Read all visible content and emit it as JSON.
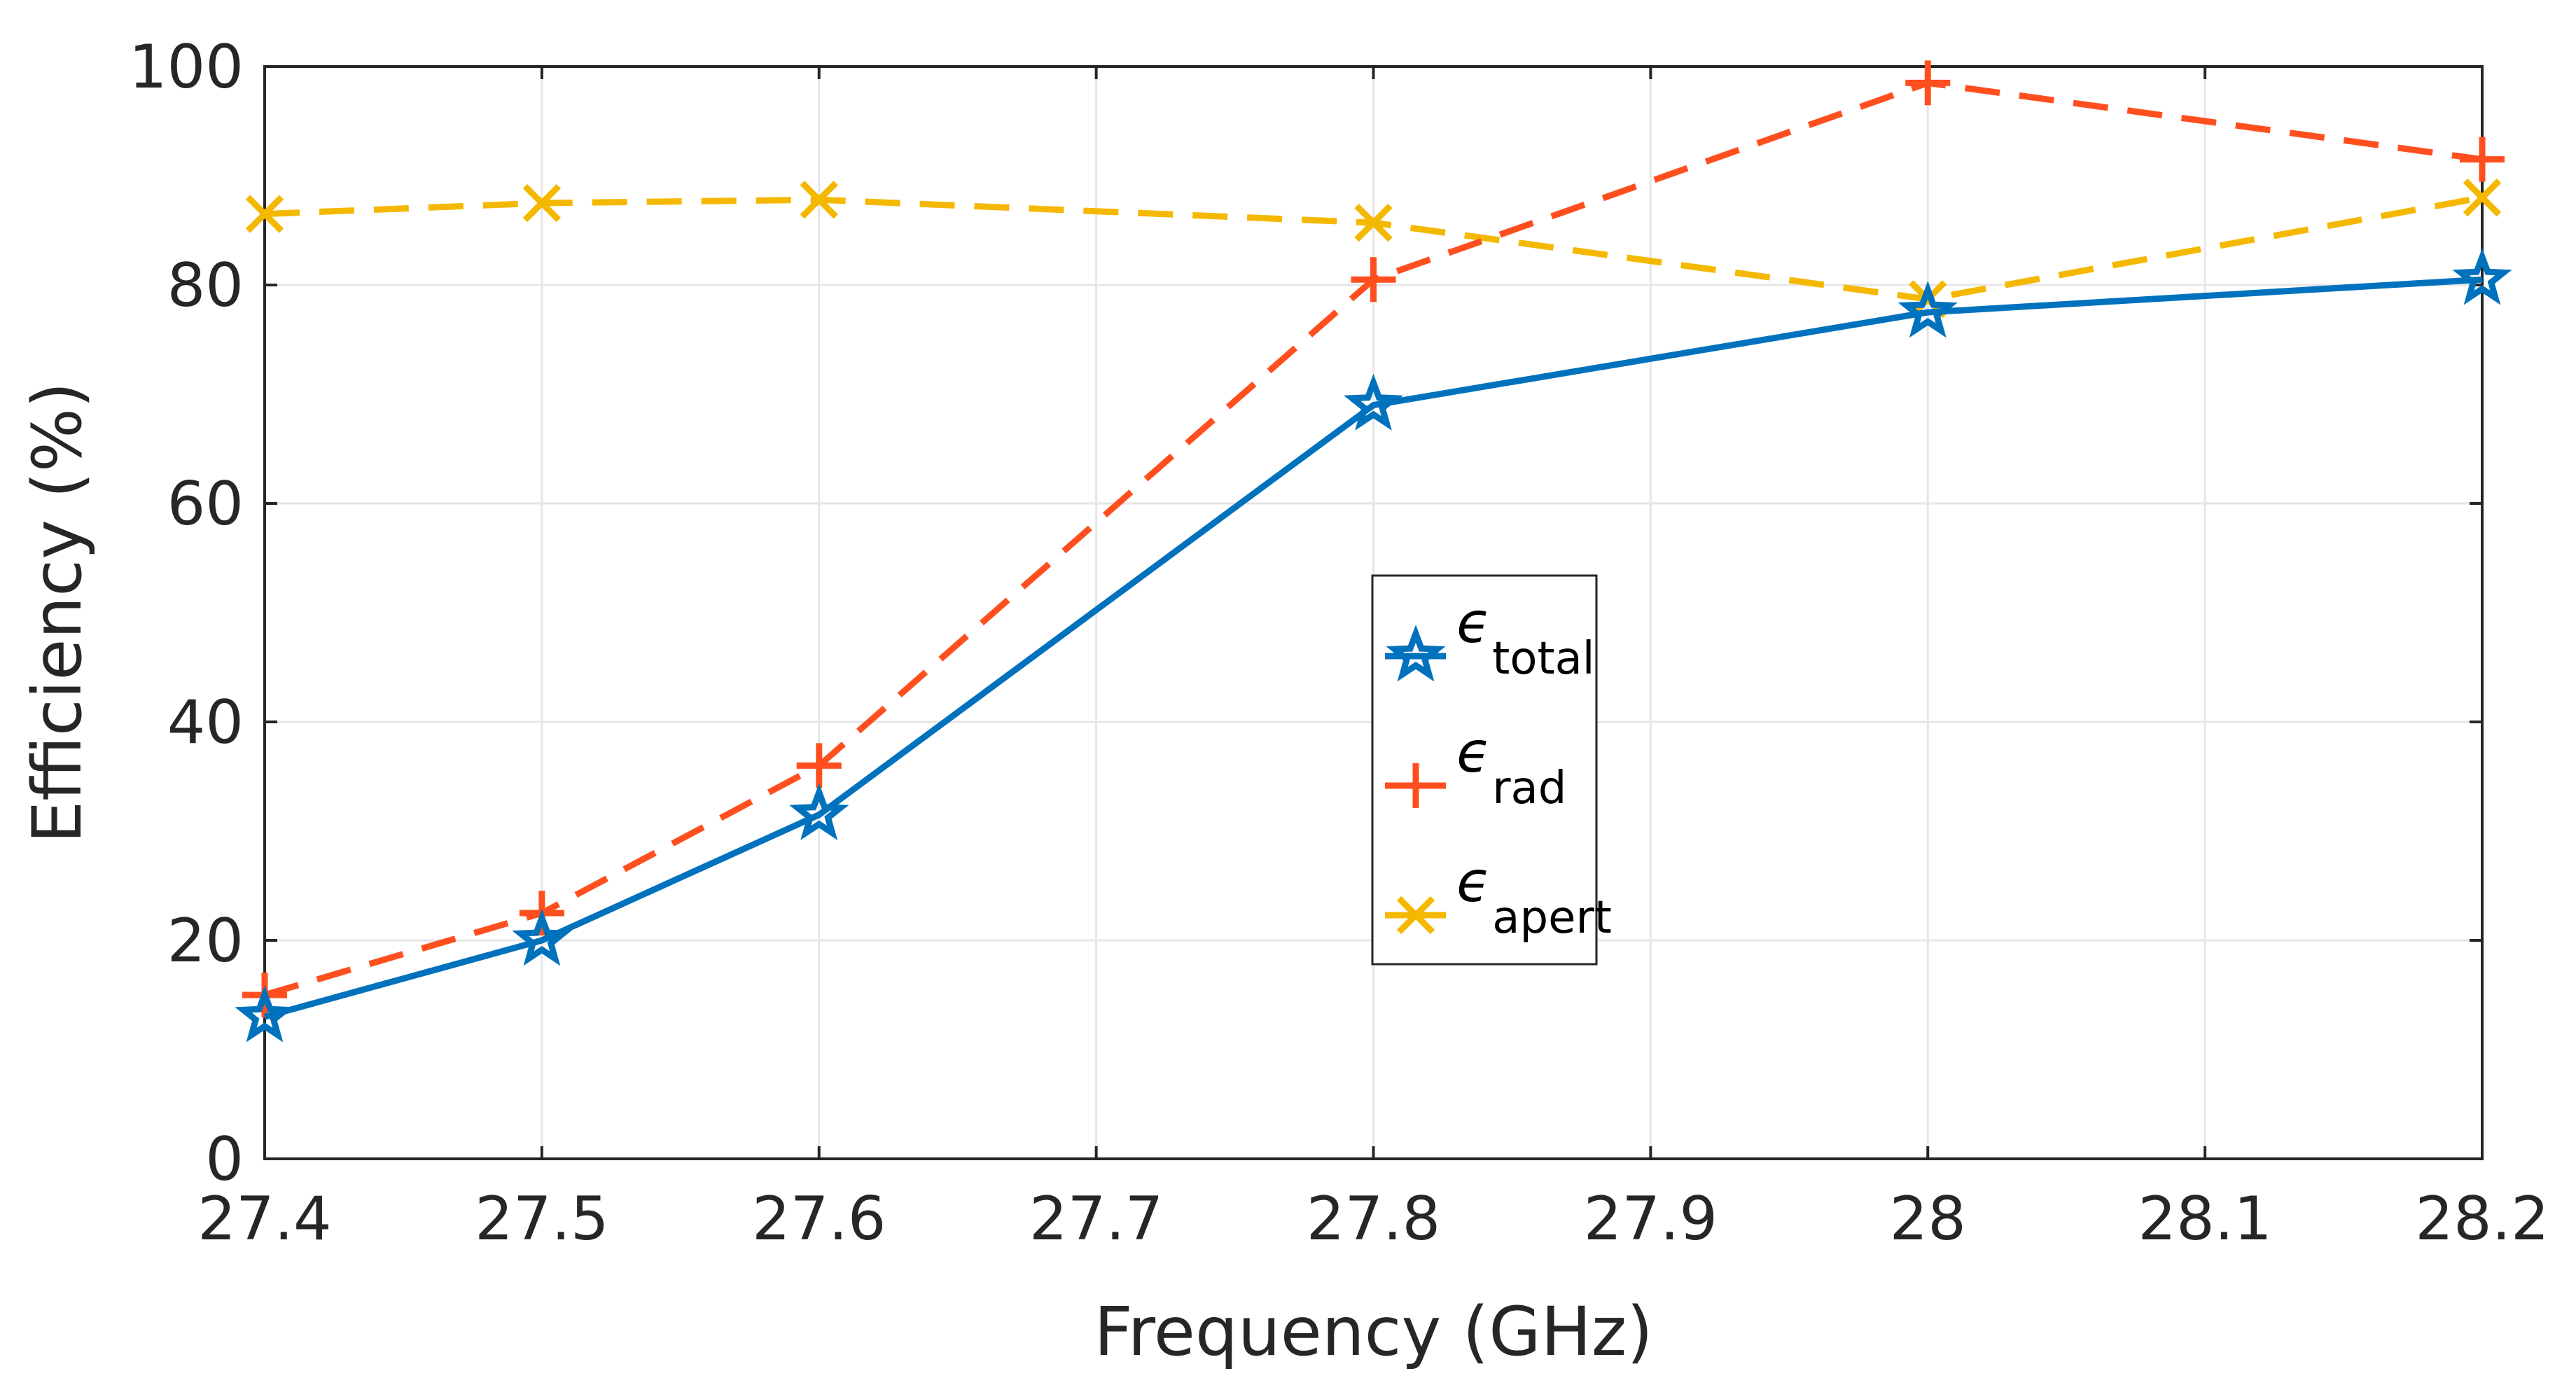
{
  "chart_data": {
    "type": "line",
    "title": "",
    "xlabel": "Frequency (GHz)",
    "ylabel": "Efficiency (%)",
    "xlim": [
      27.4,
      28.2
    ],
    "ylim": [
      0,
      100
    ],
    "x_ticks": [
      "27.4",
      "27.5",
      "27.6",
      "27.7",
      "27.8",
      "27.9",
      "28",
      "28.1",
      "28.2"
    ],
    "y_ticks": [
      "0",
      "20",
      "40",
      "60",
      "80",
      "100"
    ],
    "grid": true,
    "legend_position": "center",
    "series": [
      {
        "name": "total",
        "legend_symbol": "ϵ",
        "legend_subscript": "total",
        "color": "#0072BD",
        "line_style": "solid",
        "marker": "star",
        "x": [
          27.4,
          27.5,
          27.6,
          27.8,
          28.0,
          28.2
        ],
        "values": [
          13,
          20,
          31.5,
          69,
          77.5,
          80.5
        ]
      },
      {
        "name": "rad",
        "legend_symbol": "ϵ",
        "legend_subscript": "rad",
        "color": "#FF4F1F",
        "line_style": "dashed",
        "marker": "plus",
        "x": [
          27.4,
          27.5,
          27.6,
          27.8,
          28.0,
          28.2
        ],
        "values": [
          15,
          22.5,
          36,
          80.5,
          98.5,
          91.5
        ]
      },
      {
        "name": "apert",
        "legend_symbol": "ϵ",
        "legend_subscript": "apert",
        "color": "#F5B800",
        "line_style": "dashed",
        "marker": "x",
        "x": [
          27.4,
          27.5,
          27.6,
          27.8,
          28.0,
          28.2
        ],
        "values": [
          86.5,
          87.5,
          87.8,
          85.7,
          78.7,
          88
        ]
      }
    ]
  }
}
